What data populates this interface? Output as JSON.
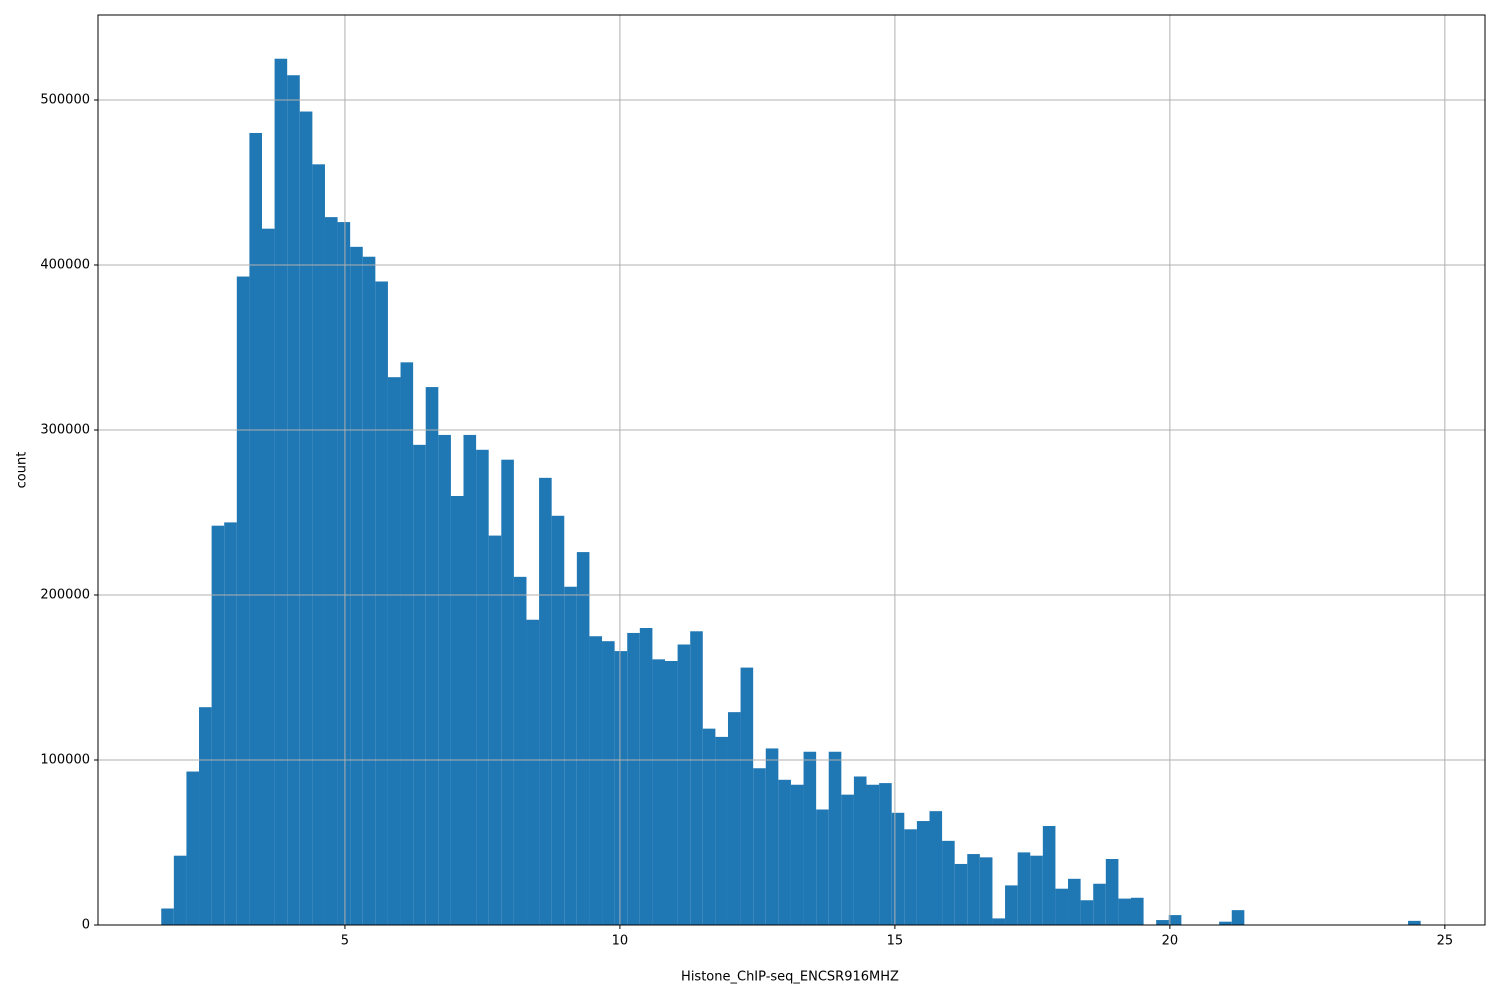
{
  "chart_data": {
    "type": "histogram",
    "x_label": "Histone_ChIP-seq_ENCSR916MHZ",
    "y_label": "count",
    "color": "#1f77b4",
    "grid": true,
    "xlim": [
      0.51,
      25.73
    ],
    "ylim": [
      0,
      551500
    ],
    "xticks": [
      5,
      10,
      15,
      20,
      25
    ],
    "yticks": [
      0,
      100000,
      200000,
      300000,
      400000,
      500000
    ],
    "bins": [
      1.66,
      1.889,
      2.118,
      2.347,
      2.576,
      2.805,
      3.034,
      3.263,
      3.492,
      3.721,
      3.95,
      4.179,
      4.408,
      4.637,
      4.866,
      5.095,
      5.324,
      5.553,
      5.782,
      6.011,
      6.24,
      6.469,
      6.698,
      6.927,
      7.156,
      7.385,
      7.614,
      7.843,
      8.072,
      8.301,
      8.53,
      8.759,
      8.988,
      9.217,
      9.446,
      9.675,
      9.904,
      10.133,
      10.362,
      10.591,
      10.82,
      11.049,
      11.278,
      11.507,
      11.736,
      11.965,
      12.194,
      12.423,
      12.652,
      12.881,
      13.11,
      13.339,
      13.568,
      13.797,
      14.026,
      14.255,
      14.484,
      14.713,
      14.942,
      15.171,
      15.4,
      15.629,
      15.858,
      16.087,
      16.316,
      16.545,
      16.774,
      17.003,
      17.232,
      17.461,
      17.69,
      17.919,
      18.148,
      18.377,
      18.606,
      18.835,
      19.064,
      19.293,
      19.522,
      19.751,
      19.98,
      20.209,
      20.438,
      20.667,
      20.896,
      21.125,
      21.354,
      21.583,
      21.812,
      22.041,
      22.27,
      22.499,
      22.728,
      22.957,
      23.186,
      23.415,
      23.644,
      23.873,
      24.102,
      24.331,
      24.56
    ],
    "counts": [
      10000,
      42000,
      93000,
      132000,
      242000,
      244000,
      393000,
      480000,
      422000,
      525000,
      515000,
      493000,
      461000,
      429000,
      426000,
      411000,
      405000,
      390000,
      332000,
      341000,
      291000,
      326000,
      297000,
      260000,
      297000,
      288000,
      236000,
      282000,
      211000,
      185000,
      271000,
      248000,
      205000,
      226000,
      175000,
      172000,
      166000,
      177000,
      180000,
      161000,
      160000,
      170000,
      178000,
      119000,
      114000,
      129000,
      156000,
      95000,
      107000,
      88000,
      85000,
      105000,
      70000,
      105000,
      79000,
      90000,
      85000,
      86000,
      68000,
      58000,
      63000,
      69000,
      51000,
      37000,
      43000,
      41000,
      4000,
      24000,
      44000,
      42000,
      60000,
      22000,
      28000,
      15000,
      25000,
      40000,
      16000,
      16500,
      0,
      3000,
      6000,
      0,
      0,
      0,
      2000,
      9000,
      0,
      0,
      0,
      0,
      0,
      0,
      0,
      0,
      0,
      0,
      0,
      0,
      0,
      2500
    ]
  }
}
